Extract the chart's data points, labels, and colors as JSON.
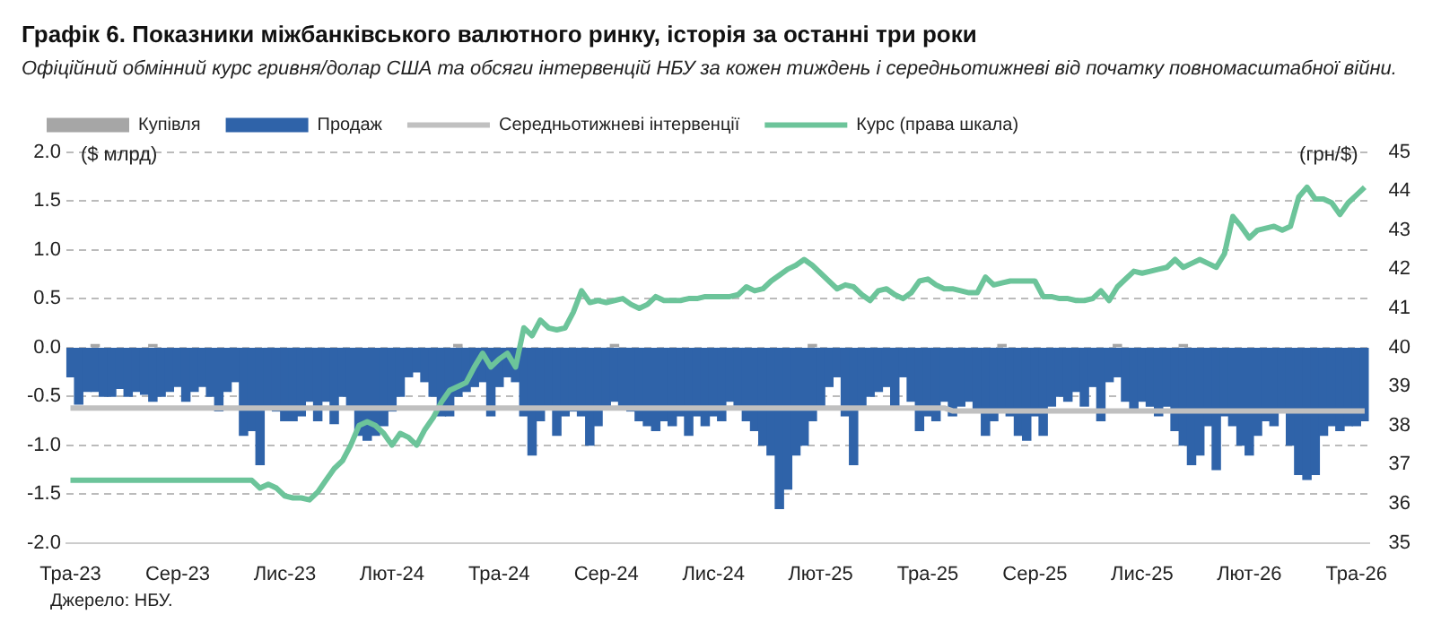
{
  "chart_data": {
    "type": "bar",
    "title": "Графік 6. Показники міжбанківського валютного ринку, історія за останні три роки",
    "subtitle": "Офіційний обмінний курс гривня/долар США та обсяги інтервенцій НБУ за кожен тиждень і середньотижневі від початку повномасштабної війни.",
    "ylabel": "($ млрд)",
    "y2label": "(грн/$)",
    "annotations": [
      "Джерело: НБУ."
    ],
    "categories": [
      "Тра-23",
      null,
      null,
      null,
      null,
      null,
      null,
      null,
      null,
      null,
      null,
      null,
      null,
      "Сер-23",
      null,
      null,
      null,
      null,
      null,
      null,
      null,
      null,
      null,
      null,
      null,
      null,
      "Лис-23",
      null,
      null,
      null,
      null,
      null,
      null,
      null,
      null,
      null,
      null,
      null,
      null,
      "Лют-24",
      null,
      null,
      null,
      null,
      null,
      null,
      null,
      null,
      null,
      null,
      null,
      null,
      "Тра-24",
      null,
      null,
      null,
      null,
      null,
      null,
      null,
      null,
      null,
      null,
      null,
      null,
      "Сер-24",
      null,
      null,
      null,
      null,
      null,
      null,
      null,
      null,
      null,
      null,
      null,
      null,
      "Лис-24",
      null,
      null,
      null,
      null,
      null,
      null,
      null,
      null,
      null,
      null,
      null,
      null,
      "Лют-25",
      null,
      null,
      null,
      null,
      null,
      null,
      null,
      null,
      null,
      null,
      null,
      null,
      "Тра-25",
      null,
      null,
      null,
      null,
      null,
      null,
      null,
      null,
      null,
      null,
      null,
      null,
      "Сер-25",
      null,
      null,
      null,
      null,
      null,
      null,
      null,
      null,
      null,
      null,
      null,
      null,
      "Лис-25",
      null,
      null,
      null,
      null,
      null,
      null,
      null,
      null,
      null,
      null,
      null,
      null,
      "Лют-26",
      null,
      null,
      null,
      null,
      null,
      null,
      null,
      null,
      null,
      null,
      null,
      null,
      "Тра-26",
      null
    ],
    "series": [
      {
        "name": "Купівля",
        "color": "#a6a6a6",
        "values": [
          null,
          null,
          null,
          0.03,
          null,
          null,
          null,
          null,
          null,
          null,
          0.03,
          null,
          null,
          null,
          null,
          null,
          null,
          null,
          null,
          null,
          null,
          null,
          null,
          null,
          null,
          null,
          null,
          null,
          null,
          null,
          null,
          null,
          null,
          null,
          null,
          null,
          null,
          null,
          null,
          null,
          null,
          null,
          null,
          null,
          null,
          null,
          null,
          0.03,
          null,
          null,
          null,
          null,
          null,
          null,
          null,
          null,
          null,
          null,
          null,
          null,
          null,
          null,
          null,
          null,
          null,
          null,
          0.03,
          null,
          null,
          null,
          null,
          null,
          null,
          null,
          null,
          null,
          null,
          null,
          null,
          null,
          null,
          null,
          null,
          null,
          null,
          null,
          null,
          null,
          null,
          null,
          0.03,
          null,
          null,
          null,
          null,
          null,
          null,
          null,
          null,
          null,
          null,
          null,
          null,
          null,
          null,
          null,
          null,
          null,
          null,
          null,
          null,
          null,
          null,
          0.03,
          null,
          null,
          null,
          null,
          null,
          null,
          null,
          null,
          null,
          null,
          null,
          null,
          null,
          0.03,
          null,
          null,
          null,
          null,
          null,
          null,
          null,
          0.03,
          null,
          null,
          null,
          null,
          null,
          null,
          null,
          null,
          null,
          null,
          null,
          null,
          null,
          null,
          null,
          null,
          null,
          null,
          null,
          null,
          null,
          null
        ]
      },
      {
        "name": "Продаж",
        "color": "#2f63a9",
        "values": [
          -0.3,
          -0.58,
          -0.45,
          -0.45,
          -0.5,
          -0.5,
          -0.42,
          -0.5,
          -0.45,
          -0.48,
          -0.55,
          -0.5,
          -0.45,
          -0.4,
          -0.55,
          -0.45,
          -0.4,
          -0.5,
          -0.65,
          -0.45,
          -0.35,
          -0.9,
          -0.85,
          -1.2,
          -0.6,
          -0.65,
          -0.75,
          -0.75,
          -0.7,
          -0.55,
          -0.75,
          -0.55,
          -0.78,
          -0.5,
          -0.6,
          -0.9,
          -0.95,
          -0.9,
          -0.8,
          -0.65,
          -0.5,
          -0.3,
          -0.25,
          -0.35,
          -0.5,
          -0.7,
          -0.7,
          -0.5,
          -0.45,
          -0.4,
          -0.35,
          -0.7,
          -0.4,
          -0.3,
          -0.35,
          -0.7,
          -1.1,
          -0.75,
          -0.6,
          -0.9,
          -0.7,
          -0.65,
          -0.7,
          -1.0,
          -0.8,
          -0.6,
          -0.55,
          -0.6,
          -0.65,
          -0.75,
          -0.8,
          -0.85,
          -0.75,
          -0.8,
          -0.7,
          -0.9,
          -0.7,
          -0.8,
          -0.7,
          -0.75,
          -0.55,
          -0.6,
          -0.75,
          -0.85,
          -1.0,
          -1.1,
          -1.65,
          -1.45,
          -1.1,
          -1.0,
          -0.75,
          -0.6,
          -0.4,
          -0.3,
          -0.7,
          -1.2,
          -0.6,
          -0.5,
          -0.45,
          -0.4,
          -0.6,
          -0.3,
          -0.55,
          -0.85,
          -0.7,
          -0.75,
          -0.55,
          -0.7,
          -0.6,
          -0.55,
          -0.65,
          -0.9,
          -0.75,
          -0.65,
          -0.7,
          -0.9,
          -0.95,
          -0.7,
          -0.9,
          -0.6,
          -0.5,
          -0.55,
          -0.45,
          -0.6,
          -0.4,
          -0.75,
          -0.35,
          -0.3,
          -0.55,
          -0.65,
          -0.55,
          -0.6,
          -0.7,
          -0.6,
          -0.85,
          -1.0,
          -1.2,
          -1.1,
          -0.8,
          -1.25,
          -0.7,
          -0.8,
          -1.0,
          -1.1,
          -0.9,
          -0.75,
          -0.8,
          -0.65,
          -1.0,
          -1.3,
          -1.35,
          -1.3,
          -0.9,
          -0.8,
          -0.85,
          -0.8,
          -0.8,
          -0.75
        ]
      },
      {
        "name": "Середньотижневі інтервенції",
        "type": "line",
        "color": "#c0c0c0",
        "values": [
          -0.62,
          -0.62,
          -0.62,
          -0.62,
          -0.62,
          -0.62,
          -0.62,
          -0.62,
          -0.62,
          -0.62,
          -0.62,
          -0.62,
          -0.62,
          -0.62,
          -0.62,
          -0.62,
          -0.62,
          -0.62,
          -0.62,
          -0.62,
          -0.62,
          -0.62,
          -0.62,
          -0.62,
          -0.62,
          -0.62,
          -0.62,
          -0.62,
          -0.62,
          -0.62,
          -0.62,
          -0.62,
          -0.62,
          -0.62,
          -0.62,
          -0.62,
          -0.62,
          -0.62,
          -0.62,
          -0.62,
          -0.62,
          -0.62,
          -0.62,
          -0.62,
          -0.62,
          -0.62,
          -0.62,
          -0.62,
          -0.62,
          -0.62,
          -0.62,
          -0.62,
          -0.62,
          -0.62,
          -0.62,
          -0.62,
          -0.62,
          -0.62,
          -0.62,
          -0.62,
          -0.62,
          -0.62,
          -0.62,
          -0.62,
          -0.62,
          -0.62,
          -0.62,
          -0.62,
          -0.62,
          -0.62,
          -0.62,
          -0.62,
          -0.62,
          -0.62,
          -0.62,
          -0.62,
          -0.62,
          -0.62,
          -0.62,
          -0.62,
          -0.62,
          -0.62,
          -0.62,
          -0.62,
          -0.62,
          -0.62,
          -0.62,
          -0.62,
          -0.62,
          -0.62,
          -0.62,
          -0.62,
          -0.62,
          -0.62,
          -0.62,
          -0.62,
          -0.62,
          -0.62,
          -0.62,
          -0.62,
          -0.62,
          -0.62,
          -0.62,
          -0.62,
          -0.62,
          -0.62,
          -0.62,
          -0.65,
          -0.65,
          -0.65,
          -0.65,
          -0.65,
          -0.65,
          -0.65,
          -0.65,
          -0.65,
          -0.65,
          -0.65,
          -0.65,
          -0.65,
          -0.65,
          -0.65,
          -0.65,
          -0.65,
          -0.65,
          -0.65,
          -0.65,
          -0.65,
          -0.65,
          -0.65,
          -0.65,
          -0.65,
          -0.65,
          -0.65,
          -0.65,
          -0.65,
          -0.65,
          -0.65,
          -0.65,
          -0.65,
          -0.65,
          -0.65,
          -0.65,
          -0.65,
          -0.65,
          -0.65,
          -0.65,
          -0.65,
          -0.65,
          -0.65,
          -0.65,
          -0.65,
          -0.65,
          -0.65,
          -0.65,
          -0.65,
          -0.65,
          -0.65
        ]
      },
      {
        "name": "Курс (права шкала)",
        "type": "line",
        "axis": "y2",
        "color": "#6cc49a",
        "values": [
          36.6,
          36.6,
          36.6,
          36.6,
          36.6,
          36.6,
          36.6,
          36.6,
          36.6,
          36.6,
          36.6,
          36.6,
          36.6,
          36.6,
          36.6,
          36.6,
          36.6,
          36.6,
          36.6,
          36.6,
          36.6,
          36.6,
          36.6,
          36.4,
          36.5,
          36.4,
          36.2,
          36.15,
          36.15,
          36.1,
          36.3,
          36.6,
          36.9,
          37.1,
          37.5,
          38.0,
          38.1,
          38.0,
          37.8,
          37.5,
          37.8,
          37.7,
          37.5,
          37.9,
          38.2,
          38.6,
          38.9,
          39.0,
          39.1,
          39.5,
          39.85,
          39.5,
          39.7,
          39.85,
          39.5,
          40.5,
          40.3,
          40.7,
          40.5,
          40.45,
          40.5,
          40.9,
          41.45,
          41.15,
          41.2,
          41.15,
          41.2,
          41.25,
          41.1,
          41.0,
          41.1,
          41.3,
          41.2,
          41.2,
          41.2,
          41.25,
          41.25,
          41.3,
          41.3,
          41.3,
          41.3,
          41.35,
          41.55,
          41.45,
          41.5,
          41.7,
          41.85,
          42.0,
          42.1,
          42.25,
          42.1,
          41.9,
          41.7,
          41.5,
          41.6,
          41.55,
          41.35,
          41.2,
          41.45,
          41.5,
          41.35,
          41.25,
          41.4,
          41.7,
          41.75,
          41.6,
          41.5,
          41.5,
          41.45,
          41.4,
          41.4,
          41.8,
          41.6,
          41.65,
          41.7,
          41.7,
          41.7,
          41.7,
          41.3,
          41.3,
          41.25,
          41.25,
          41.2,
          41.2,
          41.25,
          41.45,
          41.2,
          41.55,
          41.75,
          41.95,
          41.9,
          41.95,
          42.0,
          42.05,
          42.25,
          42.05,
          42.15,
          42.25,
          42.15,
          42.05,
          42.4,
          43.35,
          43.1,
          42.8,
          43.0,
          43.05,
          43.1,
          43.0,
          43.1,
          43.85,
          44.1,
          43.8,
          43.8,
          43.7,
          43.4,
          43.7,
          43.9,
          44.1
        ]
      }
    ],
    "stacked": true,
    "ylim": [
      -2,
      2
    ],
    "yticks": [
      {
        "value": -2,
        "label": "-2.0"
      },
      {
        "value": -1.5,
        "label": "-1.5"
      },
      {
        "value": -1,
        "label": "-1.0"
      },
      {
        "value": -0.5,
        "label": "-0.5"
      },
      {
        "value": 0,
        "label": "0.0"
      },
      {
        "value": 0.5,
        "label": "0.5"
      },
      {
        "value": 1,
        "label": "1.0"
      },
      {
        "value": 1.5,
        "label": "1.5"
      },
      {
        "value": 2,
        "label": "2.0"
      }
    ],
    "y2lim": [
      35,
      45
    ],
    "y2ticks": [
      35,
      36,
      37,
      38,
      39,
      40,
      41,
      42,
      43,
      44,
      45
    ],
    "grid": "y",
    "legend": "top",
    "marker": "none",
    "line_style": "solid"
  }
}
